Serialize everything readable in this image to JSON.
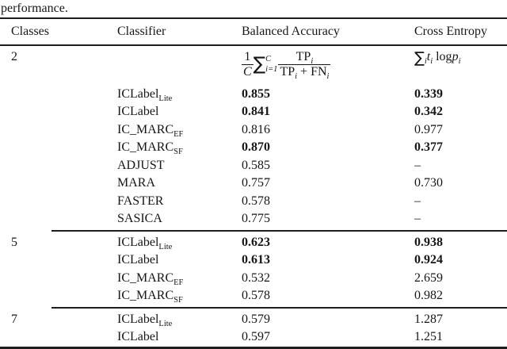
{
  "caption": "performance.",
  "colors": {
    "text": "#161616",
    "rule": "#1d1d1d",
    "background": "#ffffff"
  },
  "table": {
    "headers": [
      "Classes",
      "Classifier",
      "Balanced Accuracy",
      "Cross Entropy"
    ],
    "formula_row": {
      "classes": "2",
      "balanced_accuracy": {
        "frac_num": "1",
        "frac_den": "C",
        "sum": "∑",
        "sum_sup": "C",
        "sum_sub": "i=1",
        "num_base": "TP",
        "num_sub": "i",
        "den_a": "TP",
        "den_a_sub": "i",
        "den_op": "+",
        "den_b": "FN",
        "den_b_sub": "i"
      },
      "cross_entropy": {
        "sum": "∑",
        "sum_sub": "i",
        "var1": "t",
        "var1_sub": "i",
        "op": "log",
        "var2": "p",
        "var2_sub": "i"
      }
    },
    "sections": [
      {
        "classes": "2",
        "classes_on_formula_row": true,
        "rows": [
          {
            "classifier": "ICLabel",
            "classifier_sub": "Lite",
            "balanced_accuracy": "0.855",
            "cross_entropy": "0.339",
            "bold": true
          },
          {
            "classifier": "ICLabel",
            "classifier_sub": "",
            "balanced_accuracy": "0.841",
            "cross_entropy": "0.342",
            "bold": true
          },
          {
            "classifier": "IC_MARC",
            "classifier_sub": "EF",
            "balanced_accuracy": "0.816",
            "cross_entropy": "0.977",
            "bold": false
          },
          {
            "classifier": "IC_MARC",
            "classifier_sub": "SF",
            "balanced_accuracy": "0.870",
            "cross_entropy": "0.377",
            "bold": true
          },
          {
            "classifier": "ADJUST",
            "classifier_sub": "",
            "balanced_accuracy": "0.585",
            "cross_entropy": "–",
            "bold": false
          },
          {
            "classifier": "MARA",
            "classifier_sub": "",
            "balanced_accuracy": "0.757",
            "cross_entropy": "0.730",
            "bold": false
          },
          {
            "classifier": "FASTER",
            "classifier_sub": "",
            "balanced_accuracy": "0.578",
            "cross_entropy": "–",
            "bold": false
          },
          {
            "classifier": "SASICA",
            "classifier_sub": "",
            "balanced_accuracy": "0.775",
            "cross_entropy": "–",
            "bold": false
          }
        ]
      },
      {
        "classes": "5",
        "classes_on_formula_row": false,
        "rows": [
          {
            "classifier": "ICLabel",
            "classifier_sub": "Lite",
            "balanced_accuracy": "0.623",
            "cross_entropy": "0.938",
            "bold": true
          },
          {
            "classifier": "ICLabel",
            "classifier_sub": "",
            "balanced_accuracy": "0.613",
            "cross_entropy": "0.924",
            "bold": true
          },
          {
            "classifier": "IC_MARC",
            "classifier_sub": "EF",
            "balanced_accuracy": "0.532",
            "cross_entropy": "2.659",
            "bold": false
          },
          {
            "classifier": "IC_MARC",
            "classifier_sub": "SF",
            "balanced_accuracy": "0.578",
            "cross_entropy": "0.982",
            "bold": false
          }
        ]
      },
      {
        "classes": "7",
        "classes_on_formula_row": false,
        "rows": [
          {
            "classifier": "ICLabel",
            "classifier_sub": "Lite",
            "balanced_accuracy": "0.579",
            "cross_entropy": "1.287",
            "bold": false
          },
          {
            "classifier": "ICLabel",
            "classifier_sub": "",
            "balanced_accuracy": "0.597",
            "cross_entropy": "1.251",
            "bold": false
          }
        ]
      }
    ]
  }
}
